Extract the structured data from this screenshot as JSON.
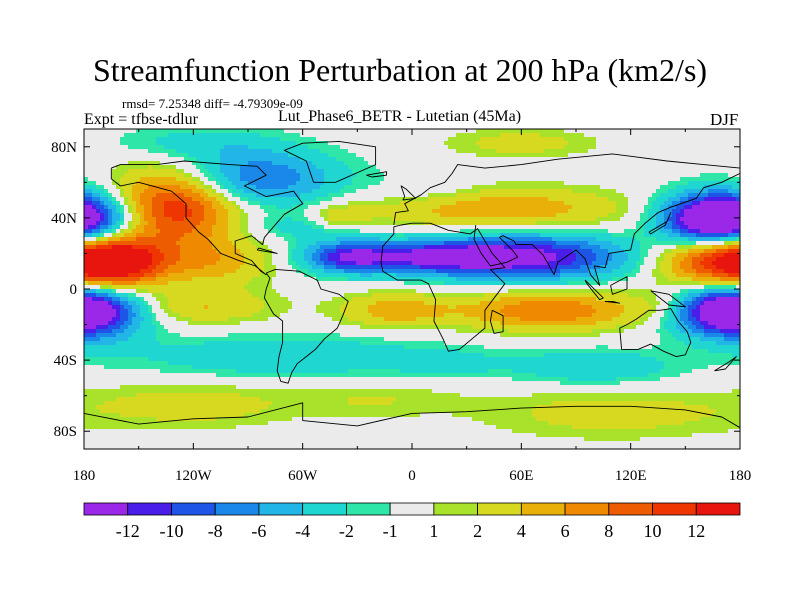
{
  "chart_data": {
    "type": "heatmap",
    "title": "Streamfunction Perturbation at 200 hPa (km2/s)",
    "stats_text": "rmsd= 7.25348  diff= -4.79309e-09",
    "left_label": "Expt = tfbse-tdlur",
    "center_label": "Lut_Phase6_BETR - Lutetian (45Ma)",
    "right_label": "DJF",
    "x_ticks": [
      "180",
      "120W",
      "60W",
      "0",
      "60E",
      "120E",
      "180"
    ],
    "x_tick_values": [
      -180,
      -120,
      -60,
      0,
      60,
      120,
      180
    ],
    "y_ticks": [
      "80N",
      "40N",
      "0",
      "40S",
      "80S"
    ],
    "y_tick_values": [
      80,
      40,
      0,
      -40,
      -80
    ],
    "xlim": [
      -180,
      180
    ],
    "ylim": [
      -90,
      90
    ],
    "colorbar_labels": [
      "-12",
      "-10",
      "-8",
      "-6",
      "-4",
      "-2",
      "-1",
      "1",
      "2",
      "4",
      "6",
      "8",
      "10",
      "12"
    ],
    "colorbar_colors": [
      "#9b27e8",
      "#4a1ee8",
      "#1f55e6",
      "#1a88e8",
      "#22b6e6",
      "#1fd6d0",
      "#2ee6a8",
      "#ebebeb",
      "#a8e22a",
      "#d6d920",
      "#eab00a",
      "#ef8a00",
      "#ee5c00",
      "#ef3500",
      "#e8140e"
    ],
    "field_features": [
      {
        "lon": -178,
        "lat": 38,
        "value": -14,
        "lon_radius": 28,
        "lat_radius": 16
      },
      {
        "lon": -178,
        "lat": -12,
        "value": -14,
        "lon_radius": 30,
        "lat_radius": 16
      },
      {
        "lon": -162,
        "lat": 15,
        "value": 13,
        "lon_radius": 26,
        "lat_radius": 15
      },
      {
        "lon": -130,
        "lat": 48,
        "value": 13,
        "lon_radius": 35,
        "lat_radius": 22
      },
      {
        "lon": -110,
        "lat": 15,
        "value": 5,
        "lon_radius": 32,
        "lat_radius": 13
      },
      {
        "lon": -90,
        "lat": 62,
        "value": -9,
        "lon_radius": 48,
        "lat_radius": 16
      },
      {
        "lon": -120,
        "lat": 82,
        "value": -3,
        "lon_radius": 45,
        "lat_radius": 10
      },
      {
        "lon": -60,
        "lat": 35,
        "value": -3,
        "lon_radius": 35,
        "lat_radius": 8
      },
      {
        "lon": 10,
        "lat": 55,
        "value": -2,
        "lon_radius": 30,
        "lat_radius": 10
      },
      {
        "lon": -40,
        "lat": 40,
        "value": 4,
        "lon_radius": 16,
        "lat_radius": 7
      },
      {
        "lon": 45,
        "lat": 45,
        "value": 6,
        "lon_radius": 70,
        "lat_radius": 12
      },
      {
        "lon": 60,
        "lat": 82,
        "value": 3,
        "lon_radius": 40,
        "lat_radius": 8
      },
      {
        "lon": -35,
        "lat": 18,
        "value": -10,
        "lon_radius": 25,
        "lat_radius": 9
      },
      {
        "lon": 60,
        "lat": 18,
        "value": -13,
        "lon_radius": 60,
        "lat_radius": 13
      },
      {
        "lon": 10,
        "lat": 18,
        "value": -8,
        "lon_radius": 40,
        "lat_radius": 8
      },
      {
        "lon": 160,
        "lat": 38,
        "value": -14,
        "lon_radius": 26,
        "lat_radius": 15
      },
      {
        "lon": 170,
        "lat": 18,
        "value": 14,
        "lon_radius": 34,
        "lat_radius": 17
      },
      {
        "lon": 165,
        "lat": -12,
        "value": -8,
        "lon_radius": 30,
        "lat_radius": 12
      },
      {
        "lon": -115,
        "lat": -10,
        "value": 4,
        "lon_radius": 40,
        "lat_radius": 10
      },
      {
        "lon": -10,
        "lat": -12,
        "value": 5,
        "lon_radius": 30,
        "lat_radius": 10
      },
      {
        "lon": 75,
        "lat": -12,
        "value": 8,
        "lon_radius": 50,
        "lat_radius": 11
      },
      {
        "lon": 140,
        "lat": -10,
        "value": 3,
        "lon_radius": 20,
        "lat_radius": 9
      },
      {
        "lon": -70,
        "lat": -38,
        "value": -4,
        "lon_radius": 85,
        "lat_radius": 12
      },
      {
        "lon": 20,
        "lat": -42,
        "value": -2,
        "lon_radius": 30,
        "lat_radius": 8
      },
      {
        "lon": 100,
        "lat": -44,
        "value": -4,
        "lon_radius": 45,
        "lat_radius": 10
      },
      {
        "lon": -120,
        "lat": -65,
        "value": 3,
        "lon_radius": 55,
        "lat_radius": 13
      },
      {
        "lon": -20,
        "lat": -62,
        "value": 2,
        "lon_radius": 45,
        "lat_radius": 10
      },
      {
        "lon": 110,
        "lat": -70,
        "value": 3,
        "lon_radius": 70,
        "lat_radius": 14
      }
    ]
  }
}
